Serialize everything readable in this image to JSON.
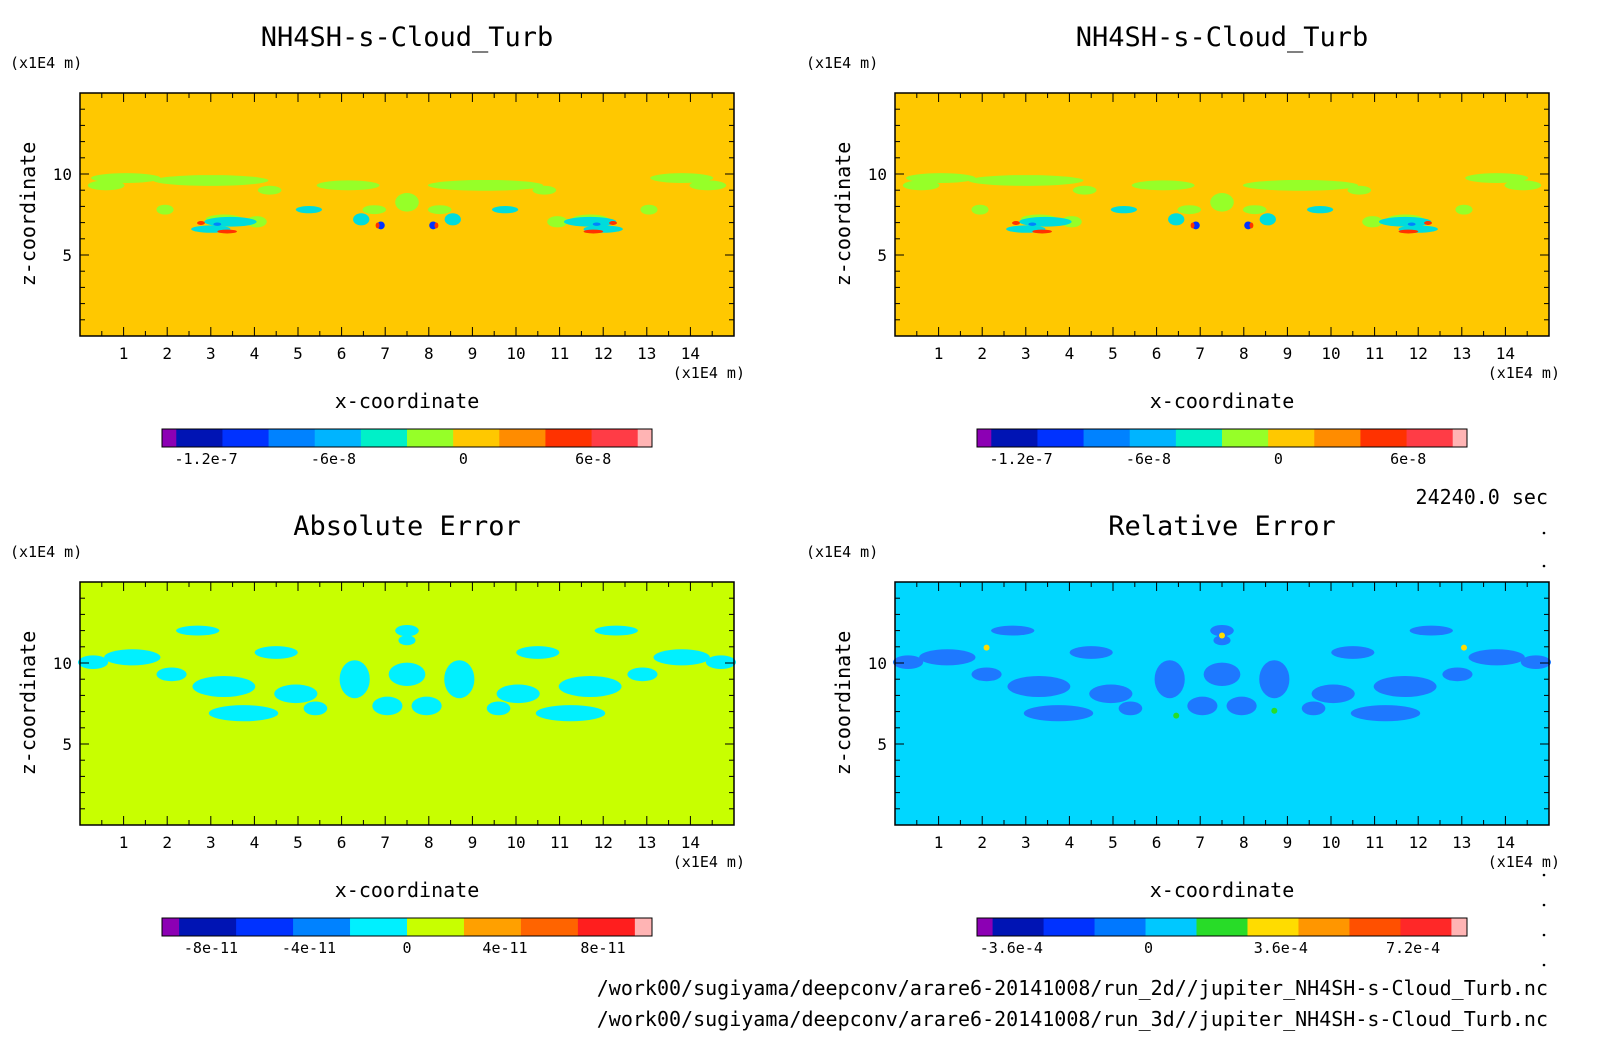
{
  "footer": {
    "time": "24240.0 sec",
    "path1": "/work00/sugiyama/deepconv/arare6-20141008/run_2d//jupiter_NH4SH-s-Cloud_Turb.nc",
    "path2": "/work00/sugiyama/deepconv/arare6-20141008/run_3d//jupiter_NH4SH-s-Cloud_Turb.nc"
  },
  "chart_data": [
    {
      "type": "heatmap",
      "title": "NH4SH-s-Cloud_Turb",
      "xlabel": "x-coordinate",
      "ylabel": "z-coordinate",
      "xunit": "(x1E4 m)",
      "yunit": "(x1E4 m)",
      "xlim": [
        0,
        15
      ],
      "ylim": [
        0,
        15
      ],
      "xticks": [
        "1",
        "2",
        "3",
        "4",
        "5",
        "6",
        "7",
        "8",
        "9",
        "10",
        "11",
        "12",
        "13",
        "14"
      ],
      "yticks": [
        "5",
        "10"
      ],
      "background_color": "#ffc800",
      "feature_color": "#96ff28",
      "colorbar": {
        "colors": [
          "#8c00b4",
          "#0014b4",
          "#0032ff",
          "#0082ff",
          "#00b4ff",
          "#00f0c8",
          "#96ff28",
          "#ffc800",
          "#ff8c00",
          "#ff3200",
          "#ff3c46",
          "#ffb4b4"
        ],
        "labels": [
          "-1.2e-7",
          "-6e-8",
          "0",
          "6e-8"
        ]
      }
    },
    {
      "type": "heatmap",
      "title": "NH4SH-s-Cloud_Turb",
      "xlabel": "x-coordinate",
      "ylabel": "z-coordinate",
      "xunit": "(x1E4 m)",
      "yunit": "(x1E4 m)",
      "xlim": [
        0,
        15
      ],
      "ylim": [
        0,
        15
      ],
      "xticks": [
        "1",
        "2",
        "3",
        "4",
        "5",
        "6",
        "7",
        "8",
        "9",
        "10",
        "11",
        "12",
        "13",
        "14"
      ],
      "yticks": [
        "5",
        "10"
      ],
      "background_color": "#ffc800",
      "feature_color": "#96ff28",
      "colorbar": {
        "colors": [
          "#8c00b4",
          "#0014b4",
          "#0032ff",
          "#0082ff",
          "#00b4ff",
          "#00f0c8",
          "#96ff28",
          "#ffc800",
          "#ff8c00",
          "#ff3200",
          "#ff3c46",
          "#ffb4b4"
        ],
        "labels": [
          "-1.2e-7",
          "-6e-8",
          "0",
          "6e-8"
        ]
      }
    },
    {
      "type": "heatmap",
      "title": "Absolute Error",
      "xlabel": "x-coordinate",
      "ylabel": "z-coordinate",
      "xunit": "(x1E4 m)",
      "yunit": "(x1E4 m)",
      "xlim": [
        0,
        15
      ],
      "ylim": [
        0,
        15
      ],
      "xticks": [
        "1",
        "2",
        "3",
        "4",
        "5",
        "6",
        "7",
        "8",
        "9",
        "10",
        "11",
        "12",
        "13",
        "14"
      ],
      "yticks": [
        "5",
        "10"
      ],
      "background_color": "#c8ff00",
      "feature_color": "#00f0ff",
      "colorbar": {
        "colors": [
          "#8c00b4",
          "#0014b4",
          "#0032ff",
          "#0082ff",
          "#00f0ff",
          "#c8ff00",
          "#ffa000",
          "#ff6400",
          "#ff1e1e",
          "#ffb4b4"
        ],
        "labels": [
          "-8e-11",
          "-4e-11",
          "0",
          "4e-11",
          "8e-11"
        ]
      }
    },
    {
      "type": "heatmap",
      "title": "Relative Error",
      "xlabel": "x-coordinate",
      "ylabel": "z-coordinate",
      "xunit": "(x1E4 m)",
      "yunit": "(x1E4 m)",
      "xlim": [
        0,
        15
      ],
      "ylim": [
        0,
        15
      ],
      "xticks": [
        "1",
        "2",
        "3",
        "4",
        "5",
        "6",
        "7",
        "8",
        "9",
        "10",
        "11",
        "12",
        "13",
        "14"
      ],
      "yticks": [
        "5",
        "10"
      ],
      "background_color": "#00d7ff",
      "feature_color": "#1e78ff",
      "colorbar": {
        "colors": [
          "#8c00b4",
          "#0014b4",
          "#0032ff",
          "#0078ff",
          "#00c8ff",
          "#28dc28",
          "#ffdc00",
          "#ff9600",
          "#ff5000",
          "#ff2828",
          "#ffb4b4"
        ],
        "labels": [
          "-3.6e-4",
          "0",
          "3.6e-4",
          "7.2e-4"
        ]
      }
    }
  ]
}
